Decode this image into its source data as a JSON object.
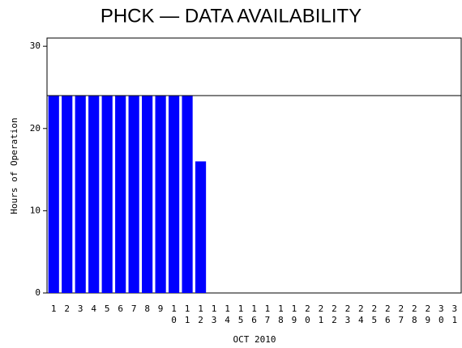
{
  "chart_data": {
    "type": "bar",
    "title": "PHCK — DATA AVAILABILITY",
    "x_label": "OCT 2010",
    "y_label": "Hours of Operation",
    "categories": [
      "1",
      "2",
      "3",
      "4",
      "5",
      "6",
      "7",
      "8",
      "9",
      "10",
      "11",
      "12",
      "13",
      "14",
      "15",
      "16",
      "17",
      "18",
      "19",
      "20",
      "21",
      "22",
      "23",
      "24",
      "25",
      "26",
      "27",
      "28",
      "29",
      "30",
      "31"
    ],
    "values": [
      24,
      24,
      24,
      24,
      24,
      24,
      24,
      24,
      24,
      24,
      24,
      16,
      0,
      0,
      0,
      0,
      0,
      0,
      0,
      0,
      0,
      0,
      0,
      0,
      0,
      0,
      0,
      0,
      0,
      0,
      0
    ],
    "color": "#0000ff",
    "reference_line": 24,
    "ylim": [
      0,
      31
    ],
    "yticks": [
      0,
      10,
      20,
      30
    ],
    "grid": false
  }
}
